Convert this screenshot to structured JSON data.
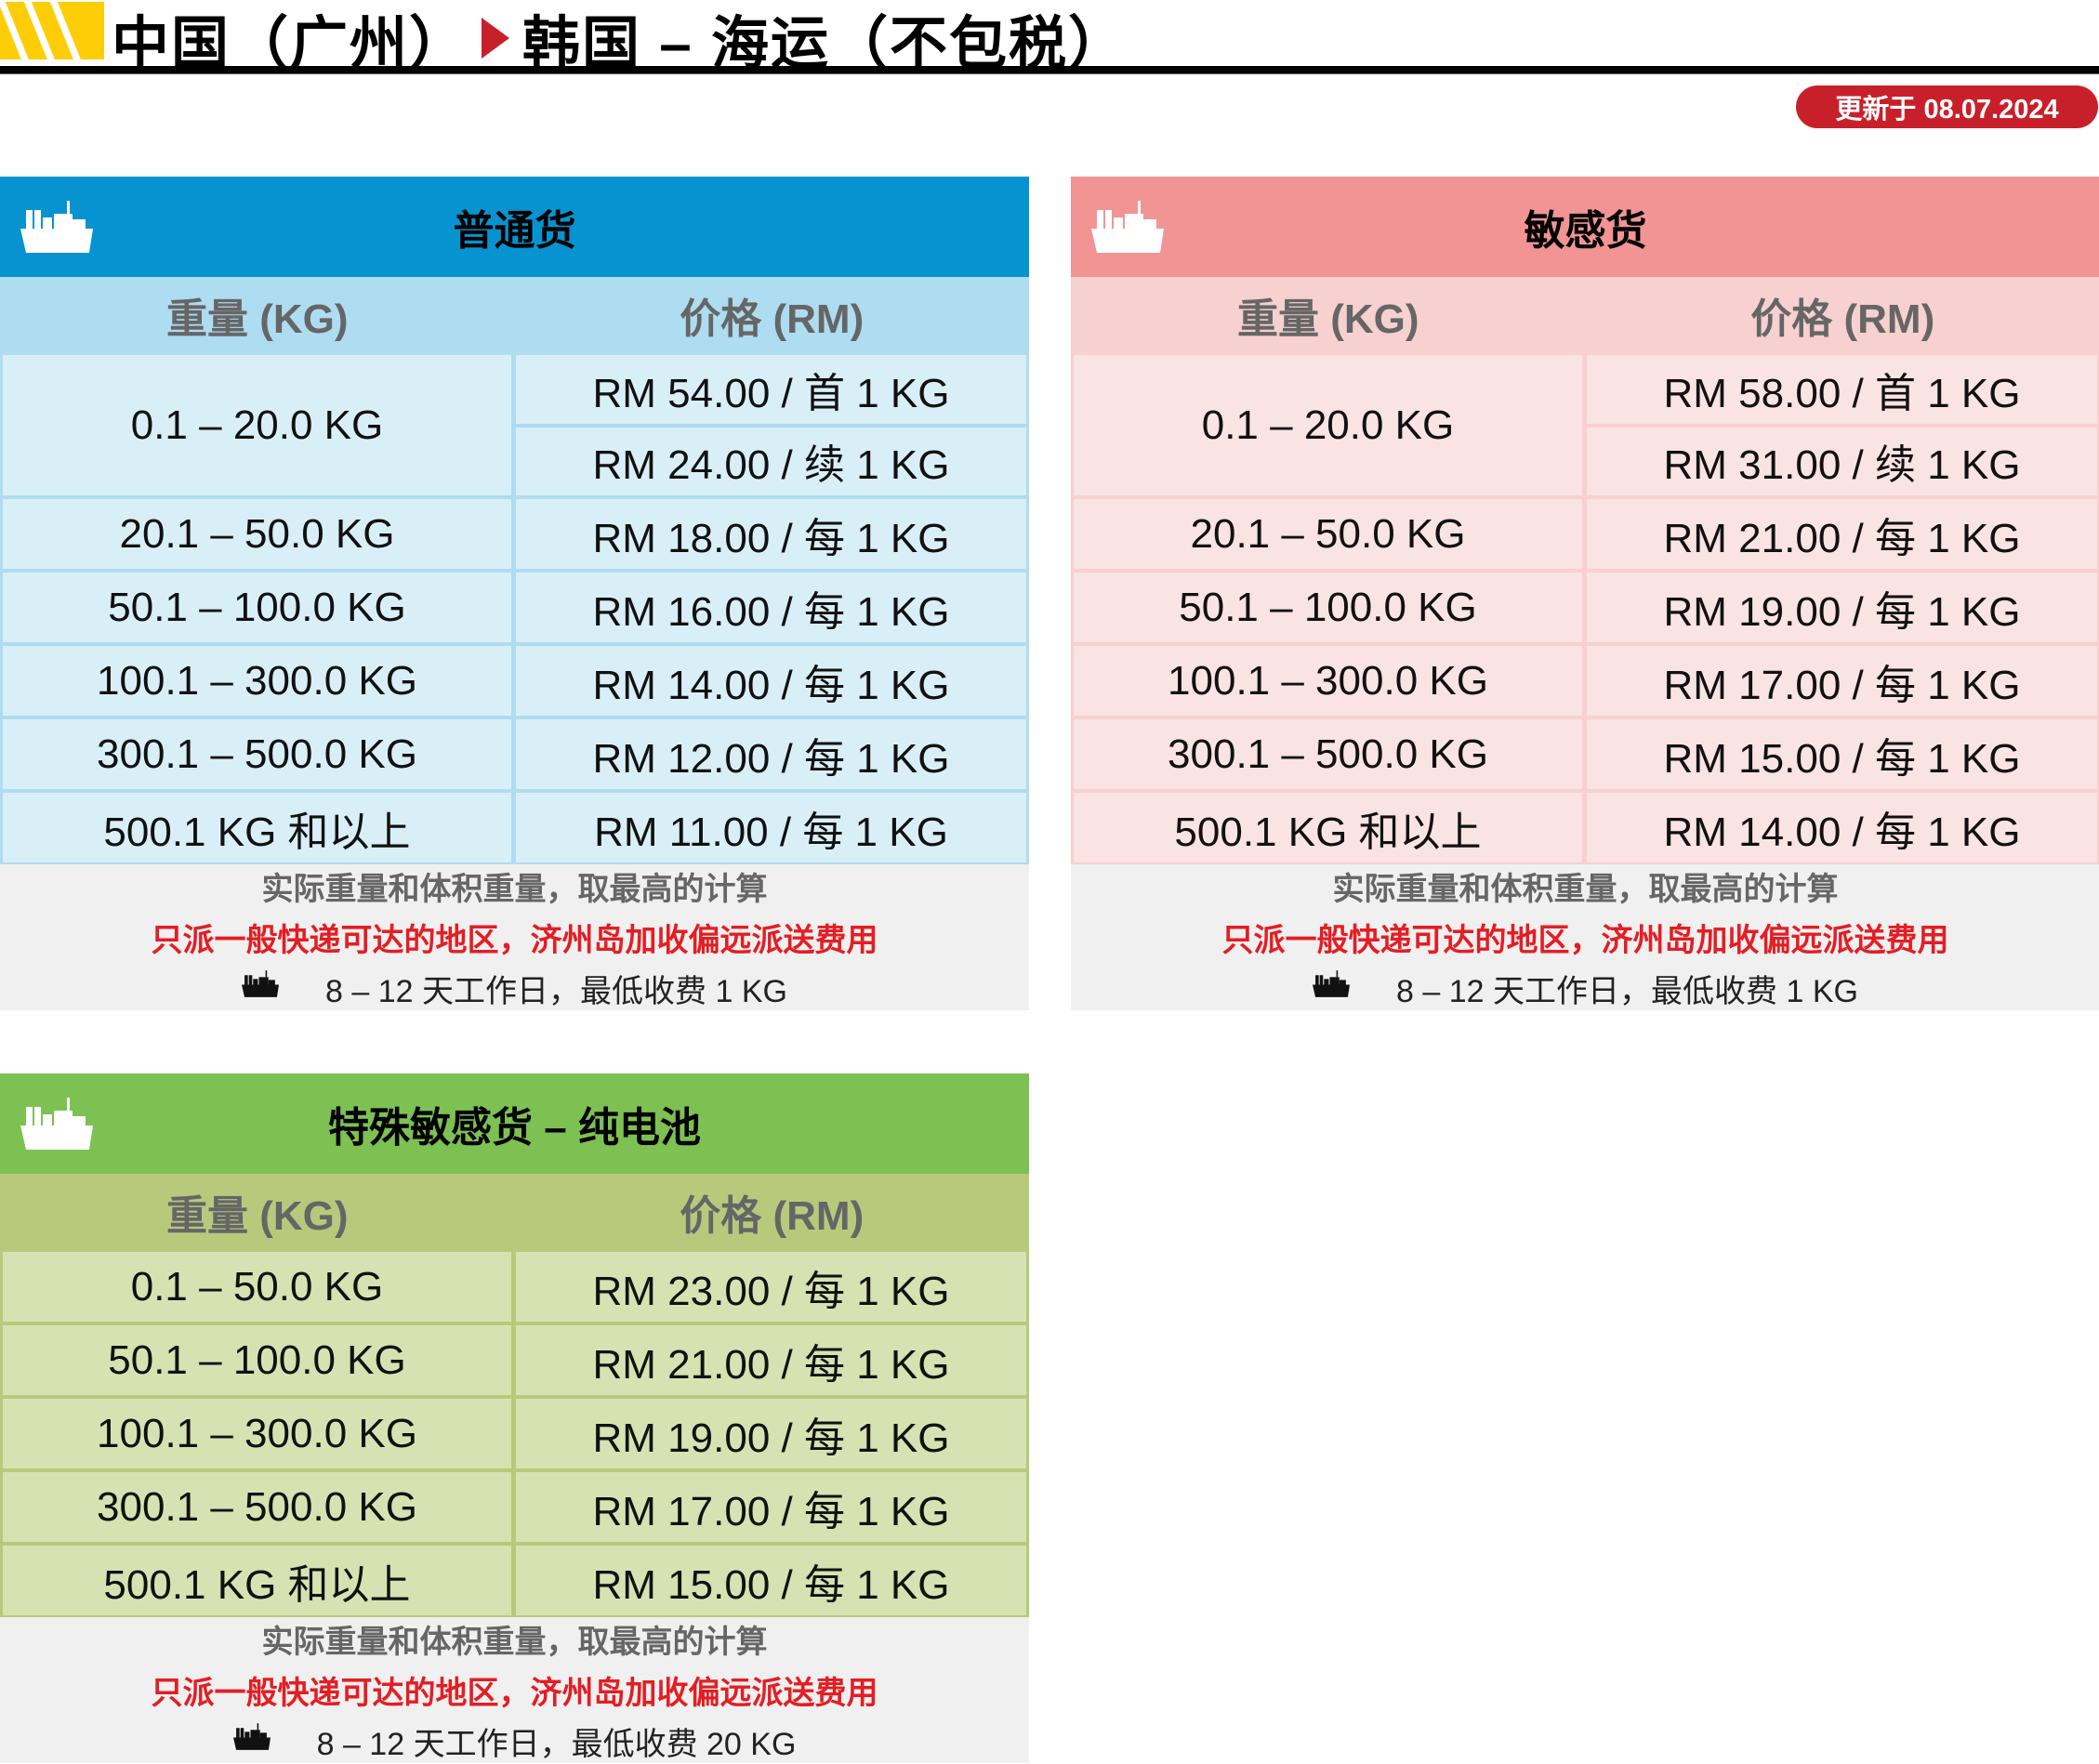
{
  "header": {
    "title_origin": "中国（广州）",
    "title_dest": "韩国 – 海运（不包税）",
    "updated": "更新于 08.07.2024"
  },
  "panels": [
    {
      "key": "general",
      "title": "普通货",
      "colors": {
        "header": "#0693d0",
        "colhead": "#aedcf1",
        "cell": "#d9eff8",
        "border": "#aedcf1"
      },
      "col_weight": "重量 (KG)",
      "col_price": "价格 (RM)",
      "rows": [
        {
          "weight": "0.1 – 20.0 KG",
          "prices": [
            "RM 54.00 / 首 1 KG",
            "RM 24.00 / 续 1 KG"
          ]
        },
        {
          "weight": "20.1 – 50.0 KG",
          "prices": [
            "RM 18.00 / 每 1 KG"
          ]
        },
        {
          "weight": "50.1 – 100.0 KG",
          "prices": [
            "RM 16.00 / 每 1 KG"
          ]
        },
        {
          "weight": "100.1 – 300.0 KG",
          "prices": [
            "RM 14.00 / 每 1 KG"
          ]
        },
        {
          "weight": "300.1 – 500.0 KG",
          "prices": [
            "RM 12.00 / 每 1 KG"
          ]
        },
        {
          "weight": "500.1 KG 和以上",
          "prices": [
            "RM 11.00 / 每 1 KG"
          ]
        }
      ],
      "note1": "实际重量和体积重量，取最高的计算",
      "note2": "只派一般快递可达的地区，济州岛加收偏远派送费用",
      "note3": "8 – 12 天工作日，最低收费 1 KG"
    },
    {
      "key": "sensitive",
      "title": "敏感货",
      "colors": {
        "header": "#f29494",
        "colhead": "#f7d0d0",
        "cell": "#f9e3e3",
        "border": "#f7d0d0"
      },
      "col_weight": "重量 (KG)",
      "col_price": "价格 (RM)",
      "rows": [
        {
          "weight": "0.1 – 20.0 KG",
          "prices": [
            "RM 58.00 / 首 1 KG",
            "RM 31.00 / 续 1 KG"
          ]
        },
        {
          "weight": "20.1 – 50.0 KG",
          "prices": [
            "RM 21.00 / 每 1 KG"
          ]
        },
        {
          "weight": "50.1 – 100.0 KG",
          "prices": [
            "RM 19.00 / 每 1 KG"
          ]
        },
        {
          "weight": "100.1 – 300.0 KG",
          "prices": [
            "RM 17.00 / 每 1 KG"
          ]
        },
        {
          "weight": "300.1 – 500.0 KG",
          "prices": [
            "RM 15.00 / 每 1 KG"
          ]
        },
        {
          "weight": "500.1 KG 和以上",
          "prices": [
            "RM 14.00 / 每 1 KG"
          ]
        }
      ],
      "note1": "实际重量和体积重量，取最高的计算",
      "note2": "只派一般快递可达的地区，济州岛加收偏远派送费用",
      "note3": "8 – 12 天工作日，最低收费 1 KG"
    },
    {
      "key": "battery",
      "title": "特殊敏感货 – 纯电池",
      "colors": {
        "header": "#7dc152",
        "colhead": "#b9c97c",
        "cell": "#d6e2b1",
        "border": "#b9c97c"
      },
      "col_weight": "重量 (KG)",
      "col_price": "价格 (RM)",
      "rows": [
        {
          "weight": "0.1 – 50.0 KG",
          "prices": [
            "RM 23.00 / 每 1 KG"
          ]
        },
        {
          "weight": "50.1 – 100.0 KG",
          "prices": [
            "RM 21.00 / 每 1 KG"
          ]
        },
        {
          "weight": "100.1 – 300.0 KG",
          "prices": [
            "RM 19.00 / 每 1 KG"
          ]
        },
        {
          "weight": "300.1 – 500.0 KG",
          "prices": [
            "RM 17.00 / 每 1 KG"
          ]
        },
        {
          "weight": "500.1 KG 和以上",
          "prices": [
            "RM 15.00 / 每 1 KG"
          ]
        }
      ],
      "note1": "实际重量和体积重量，取最高的计算",
      "note2": "只派一般快递可达的地区，济州岛加收偏远派送费用",
      "note3": "8 – 12 天工作日，最低收费 20 KG"
    }
  ]
}
